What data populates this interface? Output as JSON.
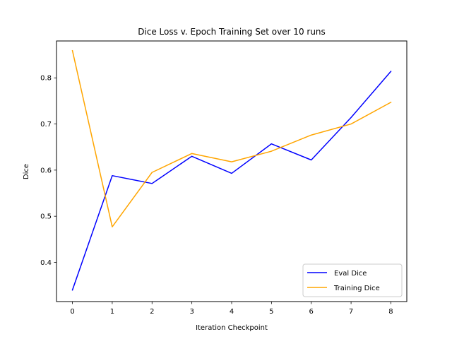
{
  "chart_data": {
    "type": "line",
    "title": "Dice Loss v. Epoch Training Set over 10 runs",
    "xlabel": "Iteration Checkpoint",
    "ylabel": "Dice",
    "x": [
      0,
      1,
      2,
      3,
      4,
      5,
      6,
      7,
      8
    ],
    "xlim": [
      -0.4,
      8.4
    ],
    "ylim": [
      0.315,
      0.88
    ],
    "xticks": [
      0,
      1,
      2,
      3,
      4,
      5,
      6,
      7,
      8
    ],
    "yticks": [
      0.4,
      0.5,
      0.6,
      0.7,
      0.8
    ],
    "grid": false,
    "legend_position": "lower-right",
    "series": [
      {
        "name": "Eval Dice",
        "color": "#0000ff",
        "values": [
          0.34,
          0.588,
          0.571,
          0.63,
          0.593,
          0.657,
          0.622,
          0.714,
          0.814
        ]
      },
      {
        "name": "Training Dice",
        "color": "#ffa500",
        "values": [
          0.859,
          0.477,
          0.595,
          0.636,
          0.618,
          0.641,
          0.676,
          0.7,
          0.747
        ]
      }
    ]
  }
}
